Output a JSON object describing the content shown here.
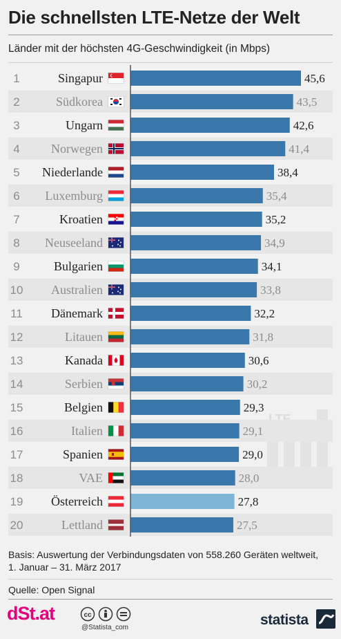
{
  "header": {
    "title": "Die schnellsten LTE-Netze der Welt",
    "subtitle": "Länder mit der höchsten 4G-Geschwindigkeit (in Mbps)"
  },
  "chart_data": {
    "type": "bar",
    "orientation": "horizontal",
    "ranks": [
      "1",
      "2",
      "3",
      "4",
      "5",
      "6",
      "7",
      "8",
      "9",
      "10",
      "11",
      "12",
      "13",
      "14",
      "15",
      "16",
      "17",
      "18",
      "19",
      "20"
    ],
    "categories": [
      "Singapur",
      "Südkorea",
      "Ungarn",
      "Norwegen",
      "Niederlande",
      "Luxemburg",
      "Kroatien",
      "Neuseeland",
      "Bulgarien",
      "Australien",
      "Dänemark",
      "Litauen",
      "Kanada",
      "Serbien",
      "Belgien",
      "Italien",
      "Spanien",
      "VAE",
      "Österreich",
      "Lettland"
    ],
    "values": [
      45.6,
      43.5,
      42.6,
      41.4,
      38.4,
      35.4,
      35.2,
      34.9,
      34.1,
      33.8,
      32.2,
      31.8,
      30.6,
      30.2,
      29.3,
      29.1,
      29.0,
      28.0,
      27.8,
      27.5
    ],
    "value_labels": [
      "45,6",
      "43,5",
      "42,6",
      "41,4",
      "38,4",
      "35,4",
      "35,2",
      "34,9",
      "34,1",
      "33,8",
      "32,2",
      "31,8",
      "30,6",
      "30,2",
      "29,3",
      "29,1",
      "29,0",
      "28,0",
      "27,8",
      "27,5"
    ],
    "flags": [
      "flag-singapore",
      "flag-south-korea",
      "flag-hungary",
      "flag-norway",
      "flag-netherlands",
      "flag-luxembourg",
      "flag-croatia",
      "flag-new-zealand",
      "flag-bulgaria",
      "flag-australia",
      "flag-denmark",
      "flag-lithuania",
      "flag-canada",
      "flag-serbia",
      "flag-belgium",
      "flag-italy",
      "flag-spain",
      "flag-uae",
      "flag-austria",
      "flag-latvia"
    ],
    "highlight_index": 18,
    "xlim": [
      0,
      45.6
    ],
    "colors": {
      "bar": "#3a78ab",
      "bar_highlight": "#7fb4d6",
      "text_dark": "#222222",
      "text_light": "#8c8c8c",
      "row_shade": "#e6e6e6"
    },
    "watermark_text": "LTE"
  },
  "footer": {
    "basis": "Basis: Auswertung der Verbindungsdaten von 558.260 Geräten weltweit, 1. Januar – 31. März 2017",
    "source": "Quelle: Open Signal",
    "brand_left": "dSt.at",
    "handle": "@Statista_com",
    "brand_right": "statista"
  }
}
